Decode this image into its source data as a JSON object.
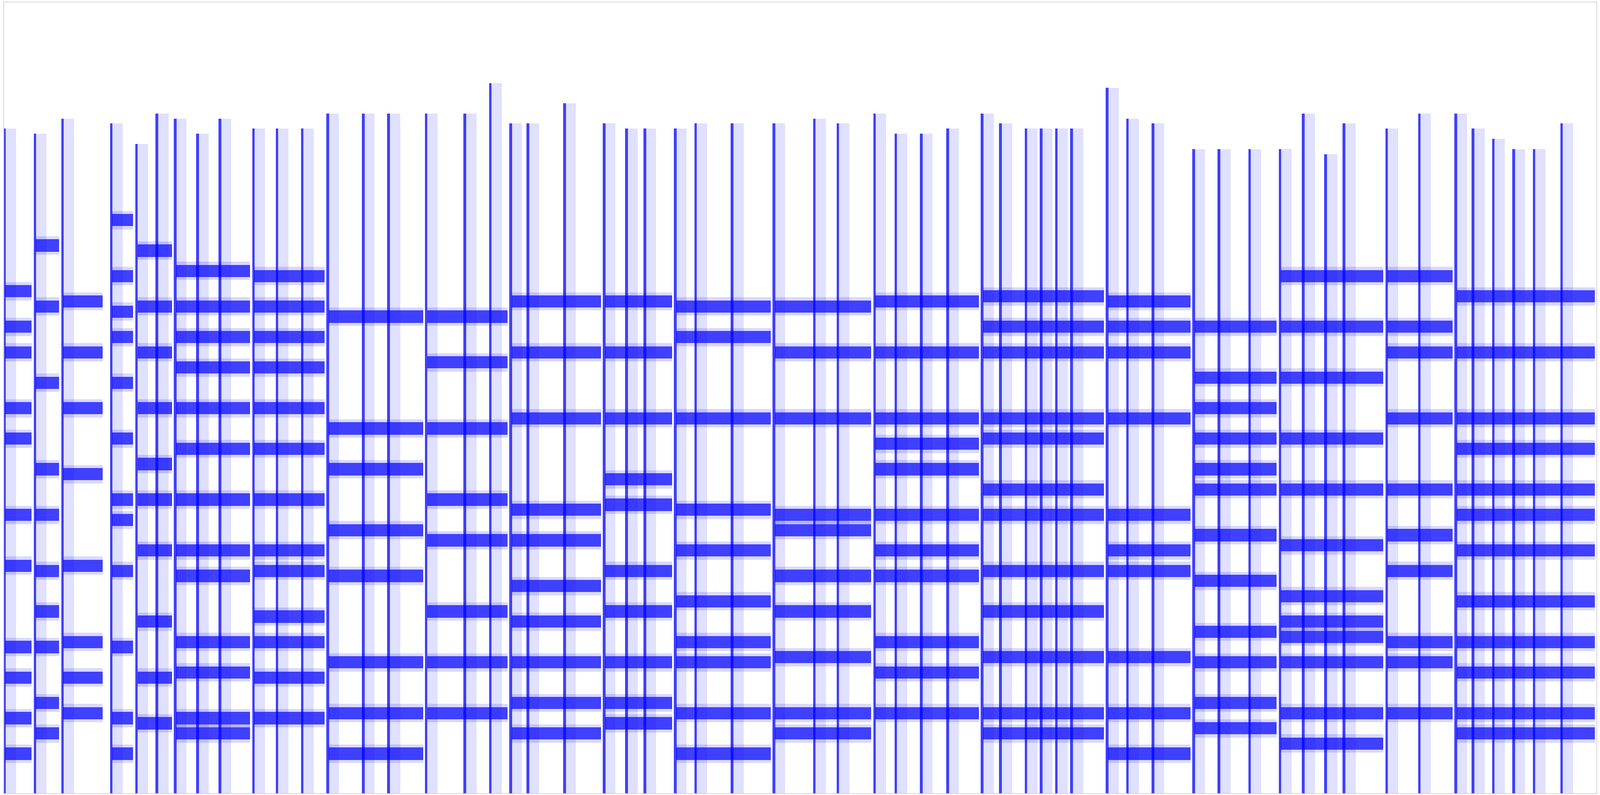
{
  "chart_data": {
    "type": "spectrogram",
    "color": "#0000ff",
    "tick_labels": false,
    "grid": false,
    "xlim": [
      0,
      1568
    ],
    "ylim": [
      779,
      0
    ],
    "xticks": [],
    "yticks": [],
    "onsets": {
      "x": [
        0,
        30,
        57,
        105,
        130,
        150,
        168,
        190,
        212,
        245,
        268,
        293,
        318,
        353,
        378,
        415,
        453,
        478,
        498,
        515,
        551,
        590,
        612,
        630,
        660,
        680,
        716,
        757,
        797,
        820,
        856,
        877,
        902,
        928,
        962,
        980,
        1005,
        1020,
        1035,
        1050,
        1085,
        1105,
        1130,
        1170,
        1195,
        1225,
        1255,
        1278,
        1300,
        1318,
        1360,
        1392,
        1428,
        1445,
        1465,
        1485,
        1505,
        1532
      ],
      "top": [
        125,
        130,
        115,
        120,
        140,
        110,
        115,
        130,
        115,
        125,
        125,
        125,
        110,
        110,
        110,
        110,
        110,
        80,
        120,
        120,
        100,
        120,
        125,
        125,
        125,
        120,
        120,
        120,
        115,
        120,
        110,
        130,
        130,
        125,
        110,
        120,
        125,
        125,
        125,
        125,
        85,
        115,
        120,
        145,
        145,
        145,
        145,
        110,
        150,
        120,
        125,
        110,
        110,
        125,
        135,
        145,
        145,
        120
      ]
    },
    "notes": [
      {
        "start": 0,
        "end": 30,
        "pitches": [
          285,
          320,
          345,
          400,
          430,
          505,
          555,
          635,
          665,
          705,
          740
        ]
      },
      {
        "start": 30,
        "end": 57,
        "pitches": [
          240,
          300,
          375,
          460,
          505,
          560,
          600,
          635,
          690,
          720
        ]
      },
      {
        "start": 57,
        "end": 100,
        "pitches": [
          295,
          345,
          400,
          465,
          555,
          630,
          665,
          700
        ]
      },
      {
        "start": 105,
        "end": 130,
        "pitches": [
          215,
          270,
          305,
          330,
          375,
          430,
          490,
          510,
          560,
          635,
          705,
          740
        ]
      },
      {
        "start": 130,
        "end": 168,
        "pitches": [
          245,
          300,
          345,
          400,
          455,
          490,
          540,
          610,
          665,
          710
        ]
      },
      {
        "start": 168,
        "end": 245,
        "pitches": [
          265,
          300,
          330,
          360,
          400,
          440,
          490,
          540,
          565,
          630,
          660,
          705,
          720
        ]
      },
      {
        "start": 245,
        "end": 318,
        "pitches": [
          270,
          300,
          330,
          360,
          400,
          440,
          490,
          540,
          560,
          605,
          630,
          665,
          705
        ]
      },
      {
        "start": 318,
        "end": 415,
        "pitches": [
          310,
          420,
          460,
          520,
          565,
          650,
          700,
          740
        ]
      },
      {
        "start": 415,
        "end": 498,
        "pitches": [
          310,
          355,
          420,
          490,
          530,
          600,
          650,
          700
        ]
      },
      {
        "start": 498,
        "end": 590,
        "pitches": [
          295,
          345,
          410,
          500,
          530,
          575,
          610,
          650,
          690,
          720
        ]
      },
      {
        "start": 590,
        "end": 660,
        "pitches": [
          295,
          345,
          410,
          470,
          495,
          560,
          600,
          650,
          690,
          710
        ]
      },
      {
        "start": 660,
        "end": 757,
        "pitches": [
          300,
          330,
          410,
          500,
          540,
          590,
          630,
          650,
          700,
          740
        ]
      },
      {
        "start": 757,
        "end": 856,
        "pitches": [
          300,
          345,
          410,
          505,
          520,
          565,
          600,
          645,
          700,
          720
        ]
      },
      {
        "start": 856,
        "end": 962,
        "pitches": [
          295,
          345,
          410,
          435,
          460,
          505,
          540,
          565,
          630,
          660,
          700
        ]
      },
      {
        "start": 962,
        "end": 1085,
        "pitches": [
          290,
          320,
          345,
          410,
          430,
          480,
          505,
          560,
          600,
          645,
          700,
          720
        ]
      },
      {
        "start": 1085,
        "end": 1170,
        "pitches": [
          295,
          320,
          345,
          410,
          505,
          540,
          560,
          645,
          700,
          740
        ]
      },
      {
        "start": 1170,
        "end": 1255,
        "pitches": [
          320,
          370,
          400,
          430,
          460,
          480,
          525,
          570,
          620,
          650,
          690,
          715
        ]
      },
      {
        "start": 1255,
        "end": 1360,
        "pitches": [
          270,
          320,
          370,
          430,
          480,
          535,
          585,
          610,
          625,
          650,
          700,
          730
        ]
      },
      {
        "start": 1360,
        "end": 1428,
        "pitches": [
          270,
          320,
          345,
          410,
          480,
          525,
          560,
          630,
          650,
          700
        ]
      },
      {
        "start": 1428,
        "end": 1568,
        "pitches": [
          290,
          345,
          410,
          440,
          480,
          505,
          540,
          590,
          630,
          660,
          700,
          720
        ]
      }
    ]
  }
}
